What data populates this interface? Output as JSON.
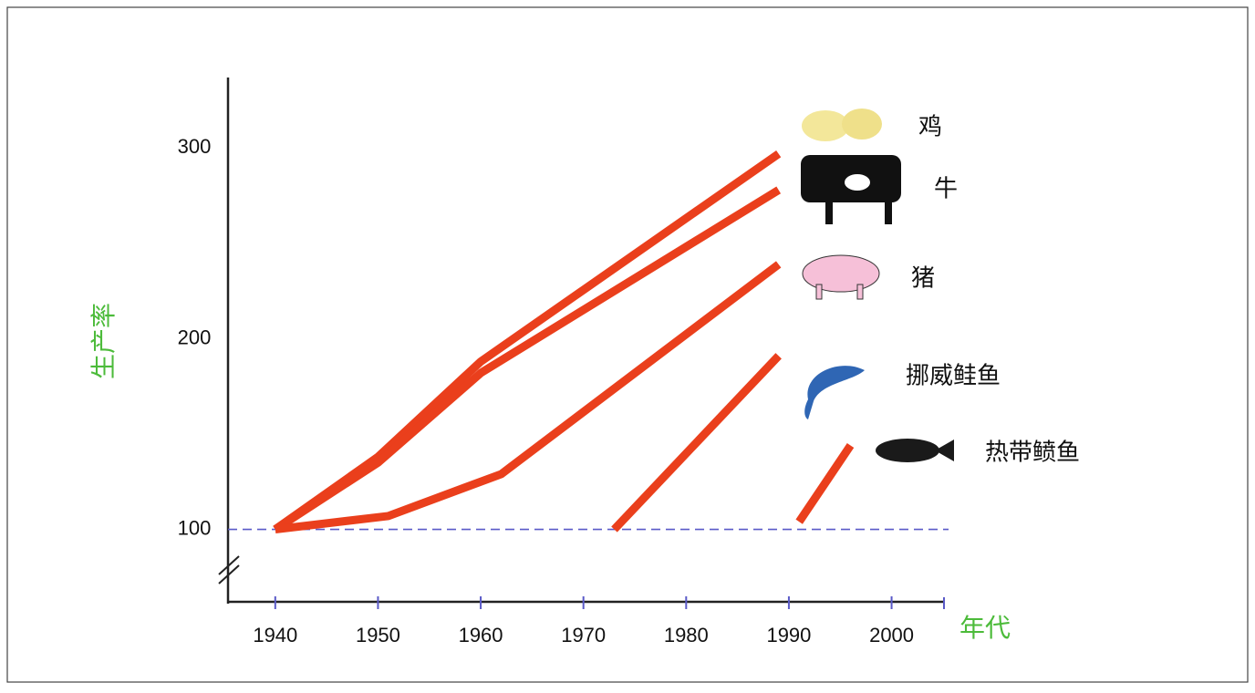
{
  "chart_data": {
    "type": "line",
    "y_label": "生产率",
    "x_label": "年代",
    "xlim": [
      1935.4,
      2005.1
    ],
    "xticks": [
      1940,
      1950,
      1960,
      1970,
      1980,
      1990,
      2000
    ],
    "ylim": [
      62,
      337
    ],
    "yticks": [
      100,
      200,
      300
    ],
    "reference_line": 100,
    "reference_color": "#5a5ac8",
    "series": [
      {
        "name": "鸡",
        "color": "#ea3f1c",
        "x": [
          1940,
          1950,
          1960,
          1989
        ],
        "values": [
          100,
          138,
          188,
          297
        ]
      },
      {
        "name": "牛",
        "color": "#ea3f1c",
        "x": [
          1940,
          1950,
          1960,
          1989
        ],
        "values": [
          100,
          135,
          182,
          278
        ]
      },
      {
        "name": "猪",
        "color": "#ea3f1c",
        "x": [
          1940,
          1951,
          1962,
          1989
        ],
        "values": [
          100,
          107,
          129,
          239
        ]
      },
      {
        "name": "挪威鲑鱼",
        "color": "#ea3f1c",
        "x": [
          1973,
          1989
        ],
        "values": [
          100,
          191
        ]
      },
      {
        "name": "热带鲼鱼",
        "color": "#ea3f1c",
        "x": [
          1991,
          1996
        ],
        "values": [
          104,
          144
        ]
      }
    ]
  }
}
